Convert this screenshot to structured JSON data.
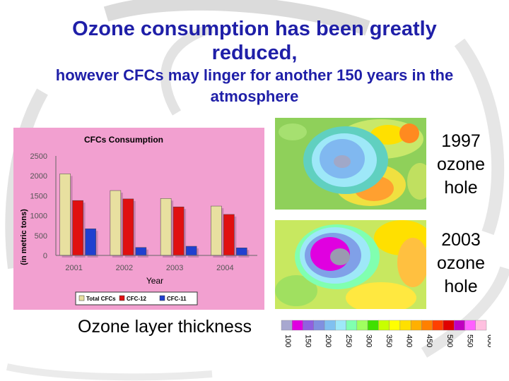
{
  "title": "Ozone consumption has been greatly reduced,",
  "subtitle": "however CFCs may linger for another 150 years in the atmosphere",
  "chart_data": {
    "type": "bar",
    "title": "CFCs Consumption",
    "xlabel": "Year",
    "ylabel": "(in metric tons)",
    "categories": [
      "2001",
      "2002",
      "2003",
      "2004"
    ],
    "ylim": [
      0,
      2500
    ],
    "yticks": [
      "0",
      "500",
      "1000",
      "1500",
      "2000",
      "2500"
    ],
    "series": [
      {
        "name": "Total CFCs",
        "color": "#e8e0a0",
        "values": [
          2050,
          1630,
          1430,
          1240
        ]
      },
      {
        "name": "CFC-12",
        "color": "#e01010",
        "values": [
          1380,
          1420,
          1220,
          1030
        ]
      },
      {
        "name": "CFC-11",
        "color": "#2040d0",
        "values": [
          670,
          200,
          230,
          190
        ]
      }
    ],
    "legend_position": "bottom",
    "grid": false
  },
  "maps": [
    {
      "year": "1997",
      "label": "1997 ozone hole"
    },
    {
      "year": "2003",
      "label": "2003 ozone hole"
    }
  ],
  "scale": {
    "title": "Ozone layer thickness",
    "ticks": [
      "100",
      "150",
      "200",
      "250",
      "300",
      "350",
      "400",
      "450",
      "500",
      "550",
      "600"
    ],
    "colors": [
      "#a8a8d0",
      "#e000e0",
      "#9060e0",
      "#8090e0",
      "#80c0f0",
      "#9ee8f8",
      "#80ffb0",
      "#a0ff60",
      "#40e000",
      "#c8ff00",
      "#ffff00",
      "#ffe000",
      "#ffb000",
      "#ff8000",
      "#ff4000",
      "#e00000",
      "#c000c0",
      "#ff60ff",
      "#ffc0e0"
    ]
  }
}
